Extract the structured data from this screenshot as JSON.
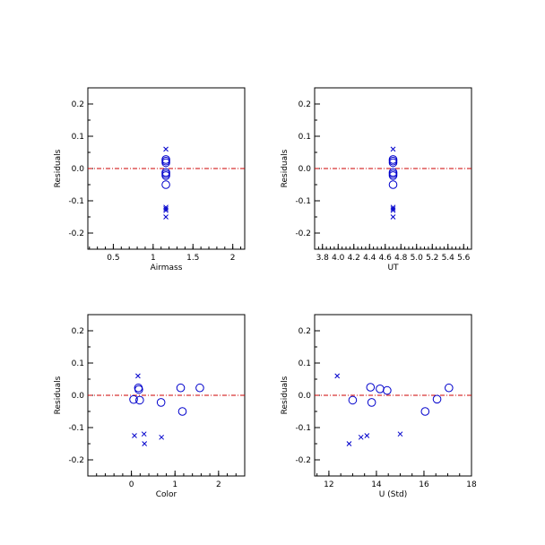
{
  "colors": {
    "marker": "#0000cc",
    "zero_line": "#cc0000",
    "frame": "#000000",
    "background": "#ffffff"
  },
  "chart_data": [
    {
      "type": "scatter",
      "xlabel": "Airmass",
      "ylabel": "Residuals",
      "xlim": [
        0.18,
        2.15
      ],
      "ylim": [
        -0.25,
        0.25
      ],
      "xticks": [
        0.5,
        1.0,
        1.5,
        2.0
      ],
      "xticklabels": [
        "0.5",
        "1",
        "1.5",
        "2"
      ],
      "xminor": 0.1,
      "yticks": [
        -0.2,
        -0.1,
        0.0,
        0.1,
        0.2
      ],
      "yticklabels": [
        "-0.2",
        "-0.1",
        "0.0",
        "0.1",
        "0.2"
      ],
      "yminor": 0.05,
      "zero_line": true,
      "grid": false,
      "series": [
        {
          "marker": "circle",
          "x": [
            1.16,
            1.16,
            1.16,
            1.16,
            1.16,
            1.16,
            1.16
          ],
          "y": [
            0.028,
            0.023,
            0.018,
            -0.012,
            -0.017,
            -0.022,
            -0.05
          ]
        },
        {
          "marker": "x",
          "x": [
            1.16,
            1.16,
            1.16,
            1.16,
            1.16
          ],
          "y": [
            0.06,
            -0.12,
            -0.125,
            -0.13,
            -0.15
          ]
        }
      ]
    },
    {
      "type": "scatter",
      "xlabel": "UT",
      "ylabel": "Residuals",
      "xlim": [
        3.7,
        5.7
      ],
      "ylim": [
        -0.25,
        0.25
      ],
      "xticks": [
        3.8,
        4.0,
        4.2,
        4.4,
        4.6,
        4.8,
        5.0,
        5.2,
        5.4,
        5.6
      ],
      "xticklabels": [
        "3.8",
        "4.0",
        "4.2",
        "4.4",
        "4.6",
        "4.8",
        "5.0",
        "5.2",
        "5.4",
        "5.6"
      ],
      "xminor": 0.05,
      "yticks": [
        -0.2,
        -0.1,
        0.0,
        0.1,
        0.2
      ],
      "yticklabels": [
        "-0.2",
        "-0.1",
        "0.0",
        "0.1",
        "0.2"
      ],
      "yminor": 0.05,
      "zero_line": true,
      "grid": false,
      "series": [
        {
          "marker": "circle",
          "x": [
            4.7,
            4.7,
            4.7,
            4.7,
            4.7,
            4.7,
            4.7
          ],
          "y": [
            0.028,
            0.023,
            0.018,
            -0.012,
            -0.017,
            -0.022,
            -0.05
          ]
        },
        {
          "marker": "x",
          "x": [
            4.7,
            4.7,
            4.7,
            4.7,
            4.7
          ],
          "y": [
            0.06,
            -0.12,
            -0.125,
            -0.13,
            -0.15
          ]
        }
      ]
    },
    {
      "type": "scatter",
      "xlabel": "Color",
      "ylabel": "Residuals",
      "xlim": [
        -1.0,
        2.6
      ],
      "ylim": [
        -0.25,
        0.25
      ],
      "xticks": [
        0,
        1,
        2
      ],
      "xticklabels": [
        "0",
        "1",
        "2"
      ],
      "xminor": 0.2,
      "yticks": [
        -0.2,
        -0.1,
        0.0,
        0.1,
        0.2
      ],
      "yticklabels": [
        "-0.2",
        "-0.1",
        "0.0",
        "0.1",
        "0.2"
      ],
      "yminor": 0.05,
      "zero_line": true,
      "grid": false,
      "series": [
        {
          "marker": "circle",
          "x": [
            0.05,
            0.16,
            0.17,
            0.19,
            0.68,
            1.13,
            1.17,
            1.57
          ],
          "y": [
            -0.013,
            0.023,
            0.018,
            -0.015,
            -0.022,
            0.023,
            -0.05,
            0.023
          ]
        },
        {
          "marker": "x",
          "x": [
            0.07,
            0.15,
            0.29,
            0.3,
            0.69
          ],
          "y": [
            -0.125,
            0.06,
            -0.12,
            -0.15,
            -0.13
          ]
        }
      ]
    },
    {
      "type": "scatter",
      "xlabel": "U (Std)",
      "ylabel": "Residuals",
      "xlim": [
        11.4,
        18.0
      ],
      "ylim": [
        -0.25,
        0.25
      ],
      "xticks": [
        12,
        14,
        16,
        18
      ],
      "xticklabels": [
        "12",
        "14",
        "16",
        "18"
      ],
      "xminor": 0.5,
      "yticks": [
        -0.2,
        -0.1,
        0.0,
        0.1,
        0.2
      ],
      "yticklabels": [
        "-0.2",
        "-0.1",
        "0.0",
        "0.1",
        "0.2"
      ],
      "yminor": 0.05,
      "zero_line": true,
      "grid": false,
      "series": [
        {
          "marker": "circle",
          "x": [
            13.0,
            13.75,
            13.8,
            14.15,
            14.45,
            16.05,
            16.55,
            17.05
          ],
          "y": [
            -0.015,
            0.025,
            -0.022,
            0.02,
            0.015,
            -0.05,
            -0.012,
            0.023
          ]
        },
        {
          "marker": "x",
          "x": [
            12.35,
            12.85,
            13.35,
            13.6,
            15.0
          ],
          "y": [
            0.06,
            -0.15,
            -0.13,
            -0.125,
            -0.12
          ]
        }
      ]
    }
  ]
}
